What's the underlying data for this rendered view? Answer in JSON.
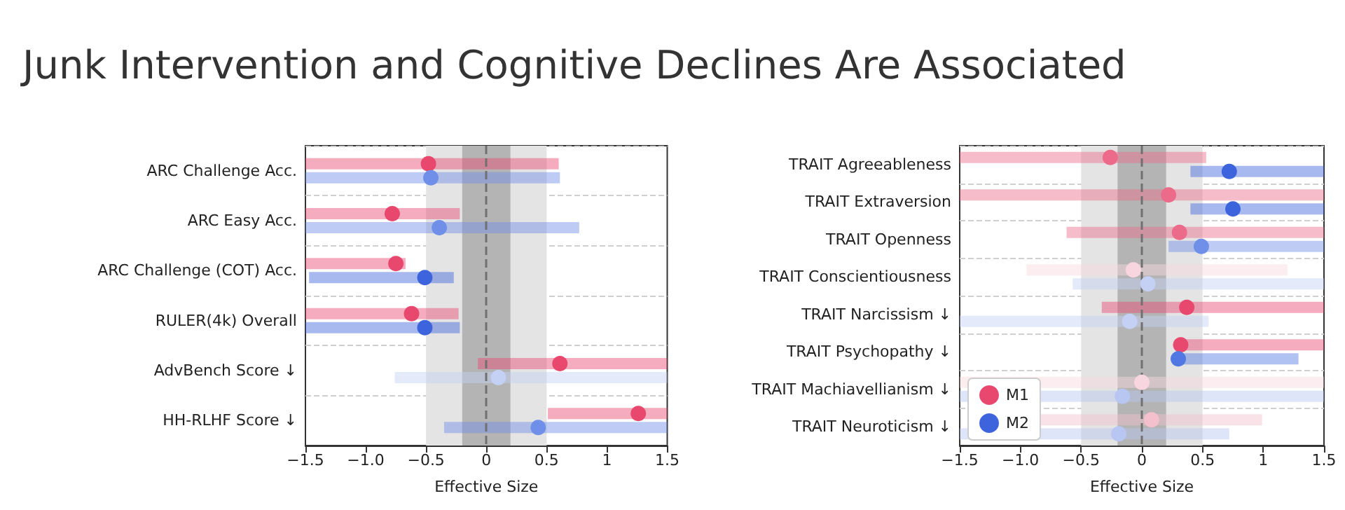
{
  "chart_data": [
    {
      "type": "scatter",
      "title": "Junk Intervention and Cognitive Declines Are Associated",
      "orientation": "horizontal",
      "xlabel": "Effective Size",
      "categories": [
        "ARC Challenge Acc.",
        "ARC Easy Acc.",
        "ARC Challenge (COT) Acc.",
        "RULER(4k) Overall",
        "AdvBench Score ↓",
        "HH-RLHF Score ↓"
      ],
      "series": [
        {
          "color": "#e8476e",
          "colors": [
            "#e8476e",
            "#e8476e",
            "#e8476e",
            "#e8476e",
            "#e8476e",
            "#e8476e"
          ],
          "values": [
            -0.48,
            -0.78,
            -0.75,
            -0.62,
            0.61,
            1.26
          ],
          "errors": [
            [
              -1.5,
              0.6
            ],
            [
              -1.5,
              -0.22
            ],
            [
              -1.5,
              -0.67
            ],
            [
              -1.5,
              -0.23
            ],
            [
              -0.07,
              1.5
            ],
            [
              0.51,
              1.5
            ]
          ]
        },
        {
          "color": "#3d63dd",
          "colors": [
            "#6f8fe8",
            "#6f8fe8",
            "#3d63dd",
            "#3d63dd",
            "#c4d0f4",
            "#6f8fe8"
          ],
          "values": [
            -0.46,
            -0.39,
            -0.51,
            -0.51,
            0.1,
            0.43
          ],
          "errors": [
            [
              -1.5,
              0.61
            ],
            [
              -1.5,
              0.77
            ],
            [
              -1.47,
              -0.27
            ],
            [
              -1.5,
              -0.22
            ],
            [
              -0.76,
              1.5
            ],
            [
              -0.35,
              1.5
            ]
          ]
        }
      ],
      "xlim": [
        -1.5,
        1.5
      ],
      "xticks": [
        {
          "value": -1.5,
          "label": "−1.5"
        },
        {
          "value": -1,
          "label": "−1.0"
        },
        {
          "value": -0.5,
          "label": "−0.5"
        },
        0,
        0.5,
        1,
        1.5
      ],
      "bands": [
        {
          "axis": "x",
          "from": -0.5,
          "to": 0.5,
          "color": "#e4e4e4"
        },
        {
          "axis": "x",
          "from": -0.2,
          "to": 0.2,
          "color": "#b4b4b4"
        }
      ],
      "ref_lines": [
        {
          "axis": "x",
          "value": 0,
          "color": "#707070",
          "line_style": "dashed"
        }
      ],
      "grid": "y",
      "marker": "circle",
      "legend": false
    },
    {
      "type": "scatter",
      "orientation": "horizontal",
      "xlabel": "Effective Size",
      "categories": [
        "TRAIT Agreeableness",
        "TRAIT Extraversion",
        "TRAIT Openness",
        "TRAIT Conscientiousness",
        "TRAIT Narcissism ↓",
        "TRAIT Psychopathy ↓",
        "TRAIT Machiavellianism ↓",
        "TRAIT Neuroticism ↓"
      ],
      "series": [
        {
          "name": "M1",
          "color": "#e8476e",
          "colors": [
            "#ec6a8a",
            "#ec6a8a",
            "#ec6a8a",
            "#f8d6df",
            "#e8476e",
            "#e8476e",
            "#f8d6df",
            "#f4c0cd"
          ],
          "values": [
            -0.26,
            0.22,
            0.31,
            -0.07,
            0.37,
            0.32,
            0.0,
            0.08
          ],
          "errors": [
            [
              -1.5,
              0.53
            ],
            [
              -1.5,
              1.5
            ],
            [
              -0.62,
              1.5
            ],
            [
              -0.95,
              1.2
            ],
            [
              -0.33,
              1.5
            ],
            [
              0.3,
              1.5
            ],
            [
              -1.5,
              1.5
            ],
            [
              -1.0,
              0.99
            ]
          ]
        },
        {
          "name": "M2",
          "color": "#3d63dd",
          "colors": [
            "#3d63dd",
            "#3d63dd",
            "#6f8fe8",
            "#c4d0f4",
            "#c4d0f4",
            "#5077e2",
            "#b8c6f2",
            "#b8c6f2"
          ],
          "values": [
            0.72,
            0.75,
            0.49,
            0.05,
            -0.1,
            0.3,
            -0.16,
            -0.19
          ],
          "errors": [
            [
              0.4,
              1.5
            ],
            [
              0.4,
              1.5
            ],
            [
              0.22,
              1.5
            ],
            [
              -0.57,
              1.5
            ],
            [
              -1.5,
              0.55
            ],
            [
              0.28,
              1.29
            ],
            [
              -1.5,
              1.5
            ],
            [
              -1.5,
              0.72
            ]
          ]
        }
      ],
      "xlim": [
        -1.5,
        1.5
      ],
      "xticks": [
        {
          "value": -1.5,
          "label": "−1.5"
        },
        {
          "value": -1,
          "label": "−1.0"
        },
        {
          "value": -0.5,
          "label": "−0.5"
        },
        0,
        0.5,
        1,
        1.5
      ],
      "bands": [
        {
          "axis": "x",
          "from": -0.5,
          "to": 0.5,
          "color": "#e4e4e4"
        },
        {
          "axis": "x",
          "from": -0.2,
          "to": 0.2,
          "color": "#b4b4b4"
        }
      ],
      "ref_lines": [
        {
          "axis": "x",
          "value": 0,
          "color": "#707070",
          "line_style": "dashed"
        }
      ],
      "grid": "y",
      "marker": "circle",
      "legend": "bottom left"
    }
  ]
}
